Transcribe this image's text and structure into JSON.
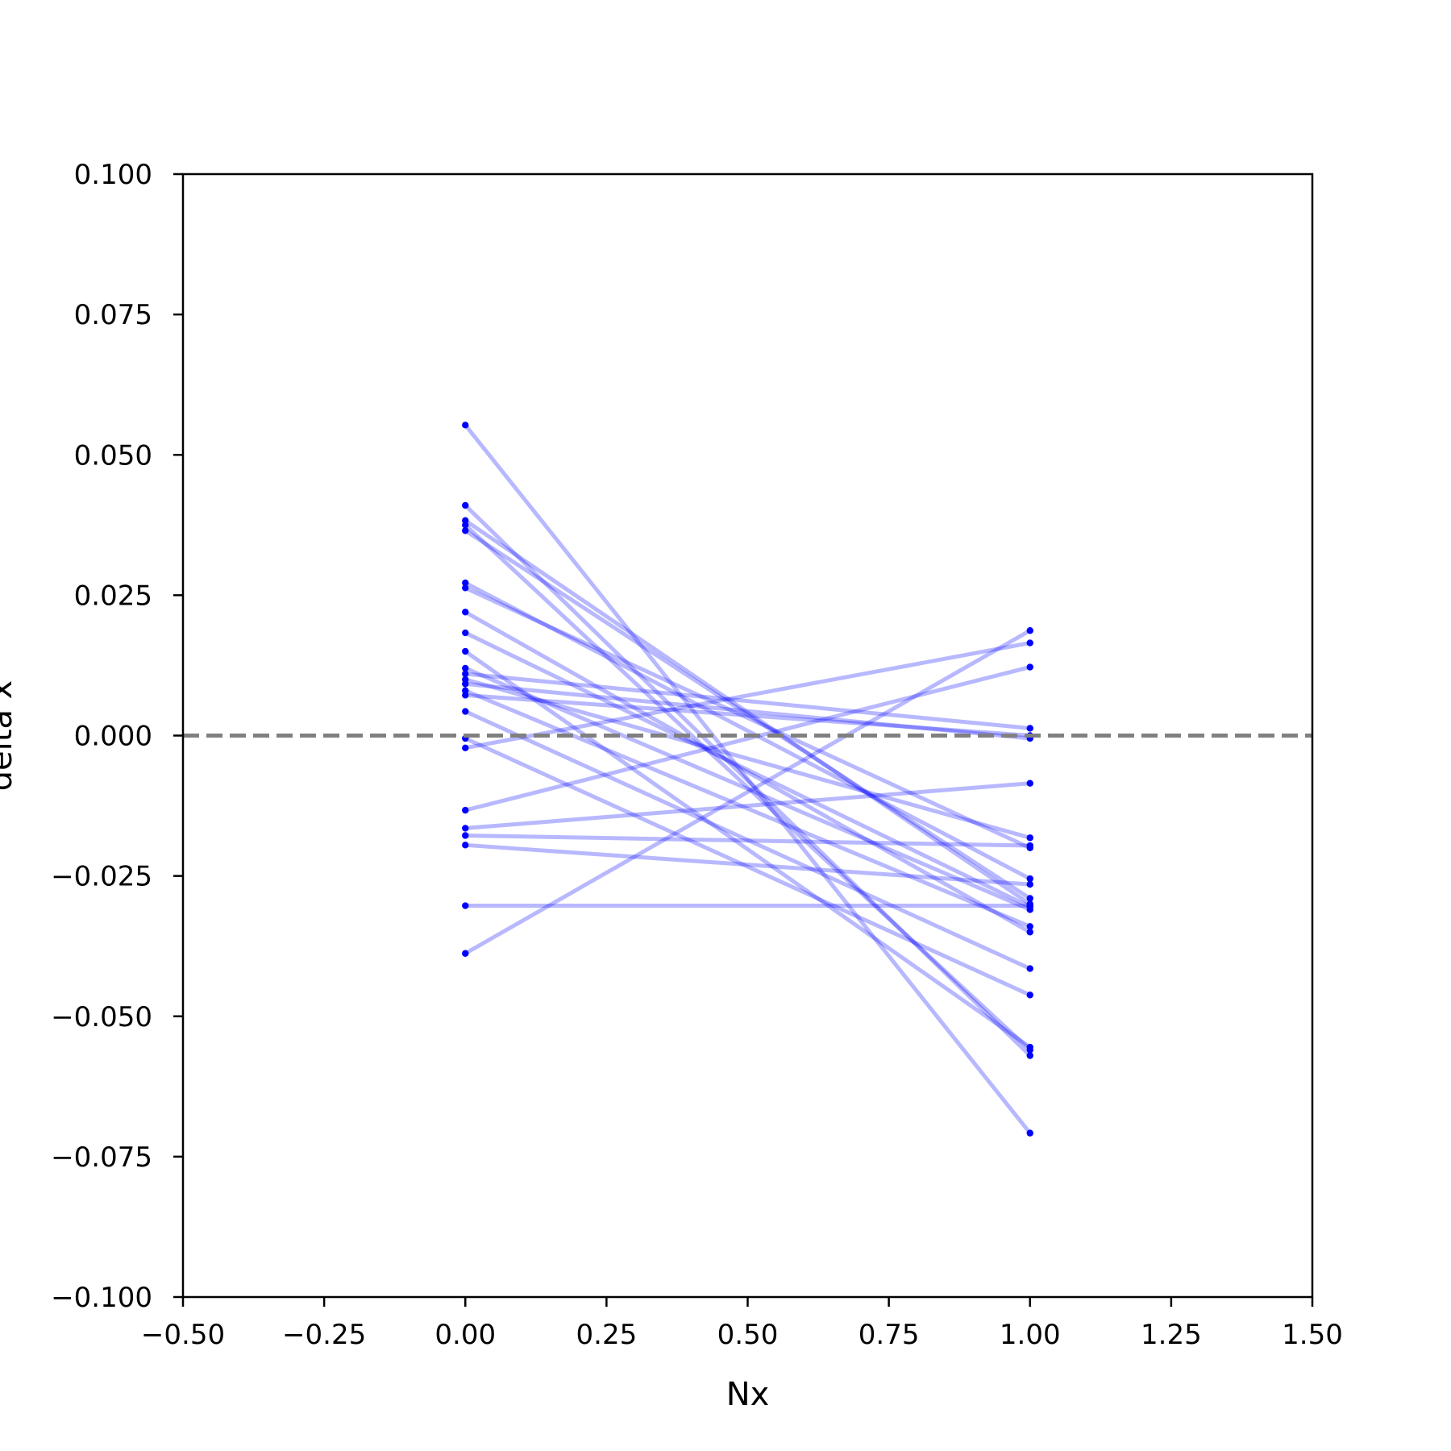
{
  "chart_data": {
    "type": "line",
    "xlabel": "Nx",
    "ylabel": "delta x",
    "xlim": [
      -0.5,
      1.5
    ],
    "ylim": [
      -0.1,
      0.1
    ],
    "grid": false,
    "reference_line": {
      "y": 0.0,
      "style": "dashed",
      "color": "#808080"
    },
    "series_color": "#0000ff",
    "x_ticks": [
      "−0.50",
      "−0.25",
      "0.00",
      "0.25",
      "0.50",
      "0.75",
      "1.00",
      "1.25",
      "1.50"
    ],
    "x_tick_values": [
      -0.5,
      -0.25,
      0.0,
      0.25,
      0.5,
      0.75,
      1.0,
      1.25,
      1.5
    ],
    "y_ticks": [
      "−0.100",
      "−0.075",
      "−0.050",
      "−0.025",
      "0.000",
      "0.025",
      "0.050",
      "0.075",
      "0.100"
    ],
    "y_tick_values": [
      -0.1,
      -0.075,
      -0.05,
      -0.025,
      0.0,
      0.025,
      0.05,
      0.075,
      0.1
    ],
    "pairs": [
      {
        "x": [
          0,
          1
        ],
        "y": [
          0.0553,
          -0.0708
        ]
      },
      {
        "x": [
          0,
          1
        ],
        "y": [
          0.041,
          -0.057
        ]
      },
      {
        "x": [
          0,
          1
        ],
        "y": [
          0.0383,
          -0.03
        ]
      },
      {
        "x": [
          0,
          1
        ],
        "y": [
          0.0375,
          -0.056
        ]
      },
      {
        "x": [
          0,
          1
        ],
        "y": [
          0.0365,
          -0.029
        ]
      },
      {
        "x": [
          0,
          1
        ],
        "y": [
          0.0272,
          -0.0255
        ]
      },
      {
        "x": [
          0,
          1
        ],
        "y": [
          0.0263,
          -0.02
        ]
      },
      {
        "x": [
          0,
          1
        ],
        "y": [
          0.022,
          -0.035
        ]
      },
      {
        "x": [
          0,
          1
        ],
        "y": [
          0.0183,
          -0.0305
        ]
      },
      {
        "x": [
          0,
          1
        ],
        "y": [
          0.015,
          -0.0555
        ]
      },
      {
        "x": [
          0,
          1
        ],
        "y": [
          0.012,
          -0.031
        ]
      },
      {
        "x": [
          0,
          1
        ],
        "y": [
          0.011,
          0.0013
        ]
      },
      {
        "x": [
          0,
          1
        ],
        "y": [
          0.01,
          -0.0182
        ]
      },
      {
        "x": [
          0,
          1
        ],
        "y": [
          0.0092,
          -0.0005
        ]
      },
      {
        "x": [
          0,
          1
        ],
        "y": [
          0.008,
          -0.034
        ]
      },
      {
        "x": [
          0,
          1
        ],
        "y": [
          0.0072,
          0.0
        ]
      },
      {
        "x": [
          0,
          1
        ],
        "y": [
          0.0043,
          -0.0415
        ]
      },
      {
        "x": [
          0,
          1
        ],
        "y": [
          -0.0005,
          -0.0462
        ]
      },
      {
        "x": [
          0,
          1
        ],
        "y": [
          -0.0022,
          0.0165
        ]
      },
      {
        "x": [
          0,
          1
        ],
        "y": [
          -0.0133,
          0.0122
        ]
      },
      {
        "x": [
          0,
          1
        ],
        "y": [
          -0.0165,
          -0.0085
        ]
      },
      {
        "x": [
          0,
          1
        ],
        "y": [
          -0.0178,
          -0.0196
        ]
      },
      {
        "x": [
          0,
          1
        ],
        "y": [
          -0.0195,
          -0.0265
        ]
      },
      {
        "x": [
          0,
          1
        ],
        "y": [
          -0.0303,
          -0.0303
        ]
      },
      {
        "x": [
          0,
          1
        ],
        "y": [
          -0.0388,
          0.0187
        ]
      }
    ]
  }
}
